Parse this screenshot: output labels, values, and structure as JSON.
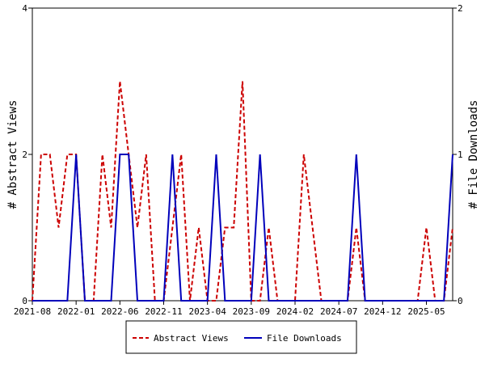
{
  "chart_data": {
    "type": "line",
    "title": "",
    "ylabel": "# Abstract Views",
    "y2label": "# File Downloads",
    "ylim": [
      0,
      4
    ],
    "y2lim": [
      0,
      2
    ],
    "yticks": [
      "0",
      "2",
      "4"
    ],
    "y2ticks": [
      "0",
      "1",
      "2"
    ],
    "xticks": [
      "2021-08",
      "2022-01",
      "2022-06",
      "2022-11",
      "2023-04",
      "2023-09",
      "2024-02",
      "2024-07",
      "2024-12",
      "2025-05"
    ],
    "legend_position": "bottom",
    "grid": false,
    "x": [
      "2021-08",
      "2021-09",
      "2021-10",
      "2021-11",
      "2021-12",
      "2022-01",
      "2022-02",
      "2022-03",
      "2022-04",
      "2022-05",
      "2022-06",
      "2022-07",
      "2022-08",
      "2022-09",
      "2022-10",
      "2022-11",
      "2022-12",
      "2023-01",
      "2023-02",
      "2023-03",
      "2023-04",
      "2023-05",
      "2023-06",
      "2023-07",
      "2023-08",
      "2023-09",
      "2023-10",
      "2023-11",
      "2023-12",
      "2024-01",
      "2024-02",
      "2024-03",
      "2024-04",
      "2024-05",
      "2024-06",
      "2024-07",
      "2024-08",
      "2024-09",
      "2024-10",
      "2024-11",
      "2024-12",
      "2025-01",
      "2025-02",
      "2025-03",
      "2025-04",
      "2025-05",
      "2025-06",
      "2025-07",
      "2025-08"
    ],
    "series": [
      {
        "name": "Abstract Views",
        "axis": "left",
        "color": "#cc0000",
        "dash": true,
        "values": [
          0,
          2,
          2,
          1,
          2,
          2,
          0,
          0,
          2,
          1,
          3,
          2,
          1,
          2,
          0,
          0,
          1,
          2,
          0,
          1,
          0,
          0,
          1,
          1,
          3,
          0,
          0,
          1,
          0,
          0,
          0,
          2,
          1,
          0,
          0,
          0,
          0,
          1,
          0,
          0,
          0,
          0,
          0,
          0,
          0,
          1,
          0,
          0,
          1
        ]
      },
      {
        "name": "File Downloads",
        "axis": "right",
        "color": "#0000bb",
        "dash": false,
        "values": [
          0,
          0,
          0,
          0,
          0,
          1,
          0,
          0,
          0,
          0,
          1,
          1,
          0,
          0,
          0,
          0,
          1,
          0,
          0,
          0,
          0,
          1,
          0,
          0,
          0,
          0,
          1,
          0,
          0,
          0,
          0,
          0,
          0,
          0,
          0,
          0,
          0,
          1,
          0,
          0,
          0,
          0,
          0,
          0,
          0,
          0,
          0,
          0,
          1
        ]
      }
    ]
  }
}
